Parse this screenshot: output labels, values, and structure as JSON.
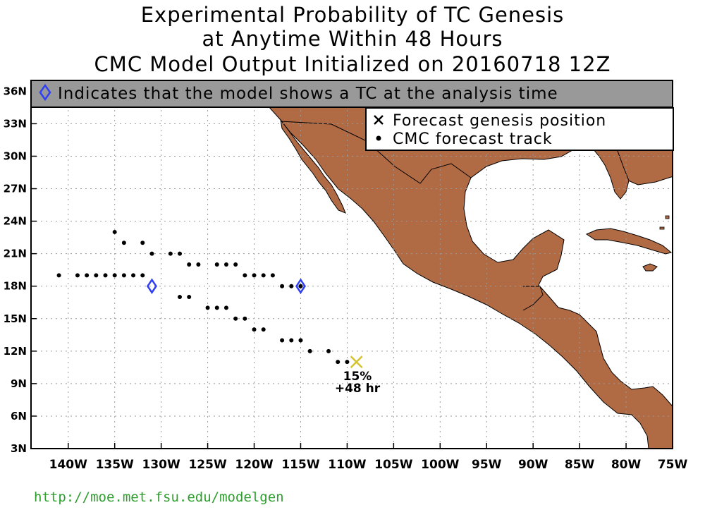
{
  "title": {
    "line1": "Experimental Probability of TC Genesis",
    "line2": "at Anytime Within 48 Hours",
    "line3": "CMC Model Output Initialized on 20160718 12Z"
  },
  "banner": {
    "text": "Indicates that the model shows a TC at the analysis time"
  },
  "legend": {
    "genesis_label": "Forecast genesis position",
    "track_label": "CMC forecast track"
  },
  "annotation": {
    "probability": "15%",
    "lead_time": "+48 hr"
  },
  "footer_url": "http://moe.met.fsu.edu/modelgen",
  "colors": {
    "land": "#b06a44",
    "ocean": "#ffffff",
    "banner": "#999999",
    "analysis_marker": "#2f3ff5",
    "genesis_marker": "#d4c22e",
    "url": "#2e9e2e"
  },
  "map_data": {
    "lon_range": [
      -144,
      -75
    ],
    "lat_range": [
      3,
      37
    ],
    "x_ticks": [
      {
        "lon": -140,
        "label": "140W"
      },
      {
        "lon": -135,
        "label": "135W"
      },
      {
        "lon": -130,
        "label": "130W"
      },
      {
        "lon": -125,
        "label": "125W"
      },
      {
        "lon": -120,
        "label": "120W"
      },
      {
        "lon": -115,
        "label": "115W"
      },
      {
        "lon": -110,
        "label": "110W"
      },
      {
        "lon": -105,
        "label": "105W"
      },
      {
        "lon": -100,
        "label": "100W"
      },
      {
        "lon": -95,
        "label": "95W"
      },
      {
        "lon": -90,
        "label": "90W"
      },
      {
        "lon": -85,
        "label": "85W"
      },
      {
        "lon": -80,
        "label": "80W"
      },
      {
        "lon": -75,
        "label": "75W"
      }
    ],
    "y_ticks": [
      {
        "lat": 3,
        "label": "3N"
      },
      {
        "lat": 6,
        "label": "6N"
      },
      {
        "lat": 9,
        "label": "9N"
      },
      {
        "lat": 12,
        "label": "12N"
      },
      {
        "lat": 15,
        "label": "15N"
      },
      {
        "lat": 18,
        "label": "18N"
      },
      {
        "lat": 21,
        "label": "21N"
      },
      {
        "lat": 24,
        "label": "24N"
      },
      {
        "lat": 27,
        "label": "27N"
      },
      {
        "lat": 30,
        "label": "30N"
      },
      {
        "lat": 33,
        "label": "33N"
      },
      {
        "lat": 36,
        "label": "36N"
      }
    ],
    "grid": true,
    "analysis_positions": [
      {
        "lon": -131,
        "lat": 18
      },
      {
        "lon": -115,
        "lat": 18
      }
    ],
    "genesis_position": {
      "lon": -109,
      "lat": 11
    },
    "track_points": [
      {
        "lon": -141,
        "lat": 19
      },
      {
        "lon": -139,
        "lat": 19
      },
      {
        "lon": -138,
        "lat": 19
      },
      {
        "lon": -137,
        "lat": 19
      },
      {
        "lon": -136,
        "lat": 19
      },
      {
        "lon": -135,
        "lat": 19
      },
      {
        "lon": -134,
        "lat": 19
      },
      {
        "lon": -133,
        "lat": 19
      },
      {
        "lon": -132,
        "lat": 19
      },
      {
        "lon": -135,
        "lat": 23
      },
      {
        "lon": -134,
        "lat": 22
      },
      {
        "lon": -132,
        "lat": 22
      },
      {
        "lon": -131,
        "lat": 21
      },
      {
        "lon": -129,
        "lat": 21
      },
      {
        "lon": -128,
        "lat": 21
      },
      {
        "lon": -127,
        "lat": 20
      },
      {
        "lon": -126,
        "lat": 20
      },
      {
        "lon": -124,
        "lat": 20
      },
      {
        "lon": -123,
        "lat": 20
      },
      {
        "lon": -122,
        "lat": 20
      },
      {
        "lon": -121,
        "lat": 19
      },
      {
        "lon": -120,
        "lat": 19
      },
      {
        "lon": -119,
        "lat": 19
      },
      {
        "lon": -118,
        "lat": 19
      },
      {
        "lon": -117,
        "lat": 18
      },
      {
        "lon": -116,
        "lat": 18
      },
      {
        "lon": -115,
        "lat": 18
      },
      {
        "lon": -128,
        "lat": 17
      },
      {
        "lon": -127,
        "lat": 17
      },
      {
        "lon": -125,
        "lat": 16
      },
      {
        "lon": -124,
        "lat": 16
      },
      {
        "lon": -123,
        "lat": 16
      },
      {
        "lon": -122,
        "lat": 15
      },
      {
        "lon": -121,
        "lat": 15
      },
      {
        "lon": -120,
        "lat": 14
      },
      {
        "lon": -119,
        "lat": 14
      },
      {
        "lon": -117,
        "lat": 13
      },
      {
        "lon": -116,
        "lat": 13
      },
      {
        "lon": -115,
        "lat": 13
      },
      {
        "lon": -114,
        "lat": 12
      },
      {
        "lon": -112,
        "lat": 12
      },
      {
        "lon": -111,
        "lat": 11
      },
      {
        "lon": -110,
        "lat": 11
      }
    ]
  }
}
